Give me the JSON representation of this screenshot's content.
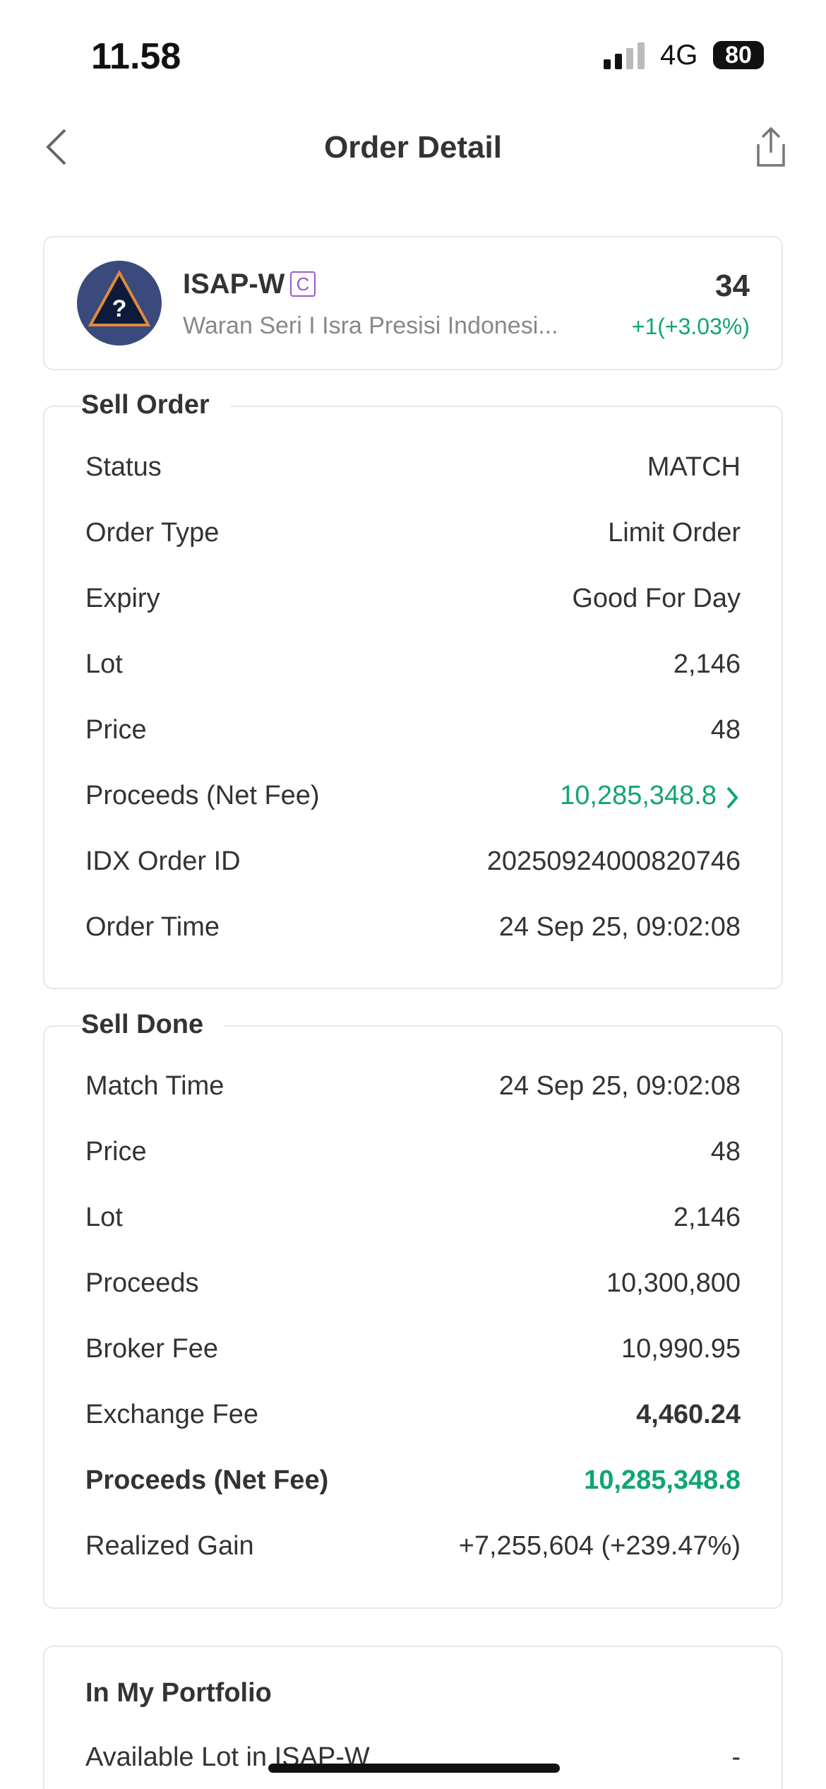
{
  "status_bar": {
    "time": "11.58",
    "network": "4G",
    "battery": "80"
  },
  "header": {
    "title": "Order Detail"
  },
  "stock": {
    "ticker": "ISAP-W",
    "badge": "C",
    "name": "Waran Seri I Isra Presisi Indonesi...",
    "price": "34",
    "change": "+1(+3.03%)"
  },
  "sell_order": {
    "title": "Sell Order",
    "rows": [
      {
        "label": "Status",
        "value": "MATCH"
      },
      {
        "label": "Order Type",
        "value": "Limit Order"
      },
      {
        "label": "Expiry",
        "value": "Good For Day"
      },
      {
        "label": "Lot",
        "value": "2,146"
      },
      {
        "label": "Price",
        "value": "48"
      },
      {
        "label": "Proceeds (Net Fee)",
        "value": "10,285,348.8"
      },
      {
        "label": "IDX Order ID",
        "value": "20250924000820746"
      },
      {
        "label": "Order Time",
        "value": "24 Sep 25, 09:02:08"
      }
    ]
  },
  "sell_done": {
    "title": "Sell Done",
    "rows": [
      {
        "label": "Match Time",
        "value": "24 Sep 25, 09:02:08"
      },
      {
        "label": "Price",
        "value": "48"
      },
      {
        "label": "Lot",
        "value": "2,146"
      },
      {
        "label": "Proceeds",
        "value": "10,300,800"
      },
      {
        "label": "Broker Fee",
        "value": "10,990.95"
      },
      {
        "label": "Exchange Fee",
        "value": "4,460.24"
      },
      {
        "label": "Proceeds (Net Fee)",
        "value": "10,285,348.8"
      },
      {
        "label": "Realized Gain",
        "value": "+7,255,604 (+239.47%)"
      }
    ]
  },
  "portfolio": {
    "title": "In My Portfolio",
    "rows": [
      {
        "label": "Available Lot in ISAP-W",
        "value": "-"
      }
    ]
  }
}
